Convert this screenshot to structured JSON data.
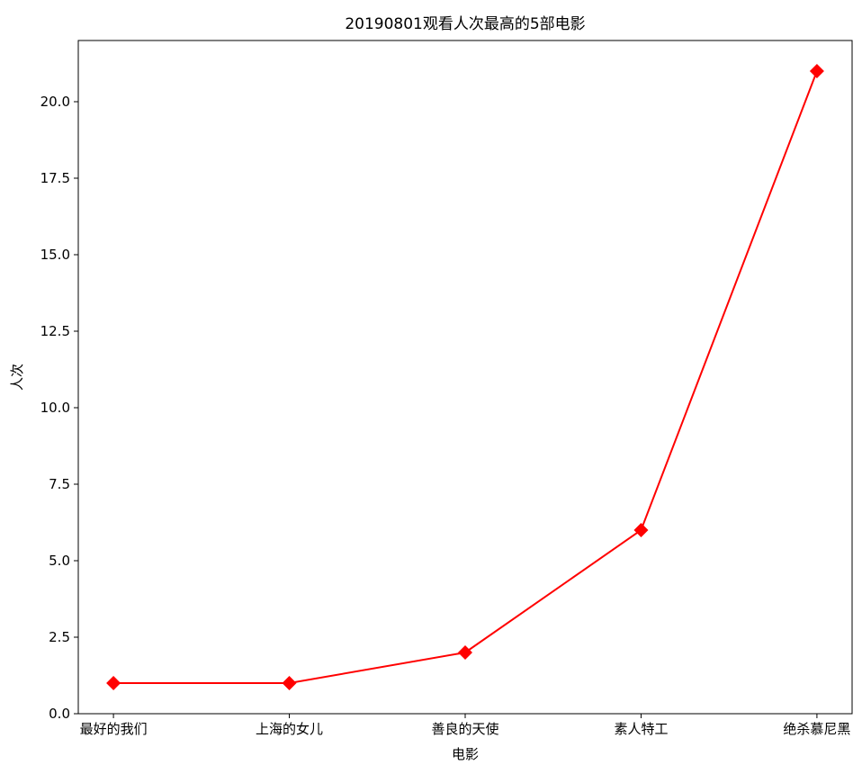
{
  "chart_data": {
    "type": "line",
    "title": "20190801观看人次最高的5部电影",
    "xlabel": "电影",
    "ylabel": "人次",
    "categories": [
      "最好的我们",
      "上海的女儿",
      "善良的天使",
      "素人特工",
      "绝杀慕尼黑"
    ],
    "series": [
      {
        "values": [
          1,
          1,
          2,
          6,
          21
        ],
        "color": "#ff0000",
        "marker": "diamond"
      }
    ],
    "ylim": [
      0,
      22
    ],
    "yticks": [
      0.0,
      2.5,
      5.0,
      7.5,
      10.0,
      12.5,
      15.0,
      17.5,
      20.0
    ],
    "ytick_labels": [
      "0.0",
      "2.5",
      "5.0",
      "7.5",
      "10.0",
      "12.5",
      "15.0",
      "17.5",
      "20.0"
    ],
    "grid": false,
    "legend": "none"
  }
}
